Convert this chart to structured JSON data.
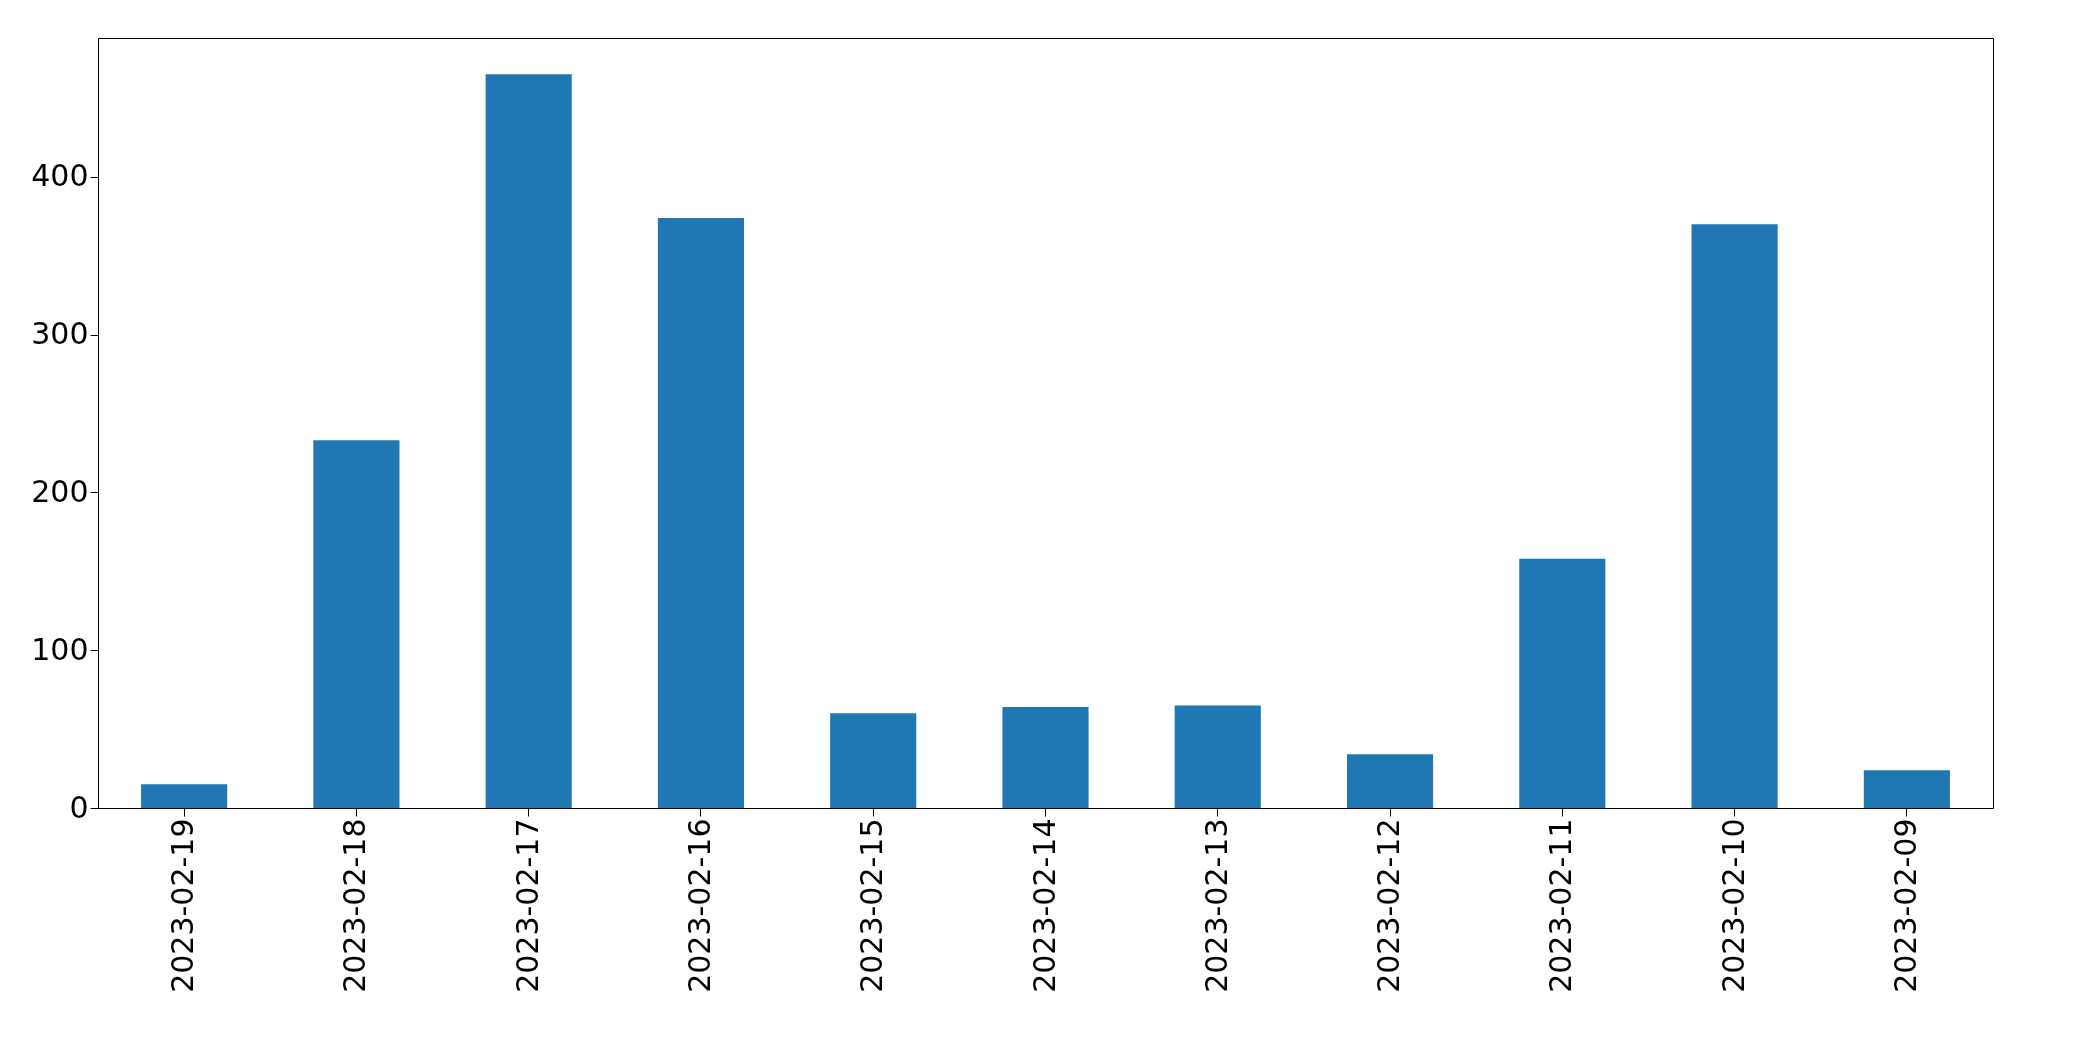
{
  "chart_data": {
    "type": "bar",
    "categories": [
      "2023-02-19",
      "2023-02-18",
      "2023-02-17",
      "2023-02-16",
      "2023-02-15",
      "2023-02-14",
      "2023-02-13",
      "2023-02-12",
      "2023-02-11",
      "2023-02-10",
      "2023-02-09"
    ],
    "values": [
      15,
      233,
      465,
      374,
      60,
      64,
      65,
      34,
      158,
      370,
      24
    ],
    "color": "#1f77b4",
    "ylim": [
      0,
      488
    ],
    "yticks": [
      0,
      100,
      200,
      300,
      400
    ],
    "grid": false
  }
}
